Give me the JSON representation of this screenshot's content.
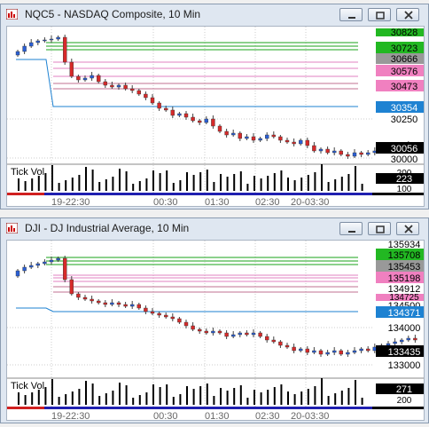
{
  "charts": [
    {
      "title": "NQC5 - NASDAQ Composite, 10 Min",
      "price_labels": [
        "30828",
        "30723",
        "30666",
        "30576",
        "30473",
        "30354",
        "30250",
        "30056",
        "30000"
      ],
      "tick_panel": {
        "label": "Tick Vol",
        "value": "223",
        "top_tick": "200",
        "bottom_tick": "100"
      },
      "time_labels": [
        "19-22:30",
        "00:30",
        "01:30",
        "02:30",
        "20-03:30"
      ],
      "colors": {
        "up": "#2a5fd6",
        "down": "#d62a2a",
        "last_badge": "#000000",
        "green_line": "#1aa31a",
        "pink_line": "#e040a0",
        "blue_line": "#1e82d2"
      }
    },
    {
      "title": "DJI - DJ Industrial Average, 10 Min",
      "price_labels": [
        "135934",
        "135708",
        "135453",
        "135198",
        "134912",
        "134725",
        "134500",
        "134371",
        "134000",
        "133435",
        "133000"
      ],
      "tick_panel": {
        "label": "Tick Vol",
        "value": "271",
        "top_tick": "",
        "bottom_tick": "200"
      },
      "time_labels": [
        "19-22:30",
        "00:30",
        "01:30",
        "02:30",
        "20-03:30"
      ],
      "colors": {
        "up": "#2a5fd6",
        "down": "#d62a2a",
        "last_badge": "#000000",
        "green_line": "#1aa31a",
        "pink_line": "#e040a0",
        "blue_line": "#1e82d2"
      }
    }
  ],
  "window_buttons": [
    "minimize-button",
    "restore-button",
    "close-button"
  ]
}
